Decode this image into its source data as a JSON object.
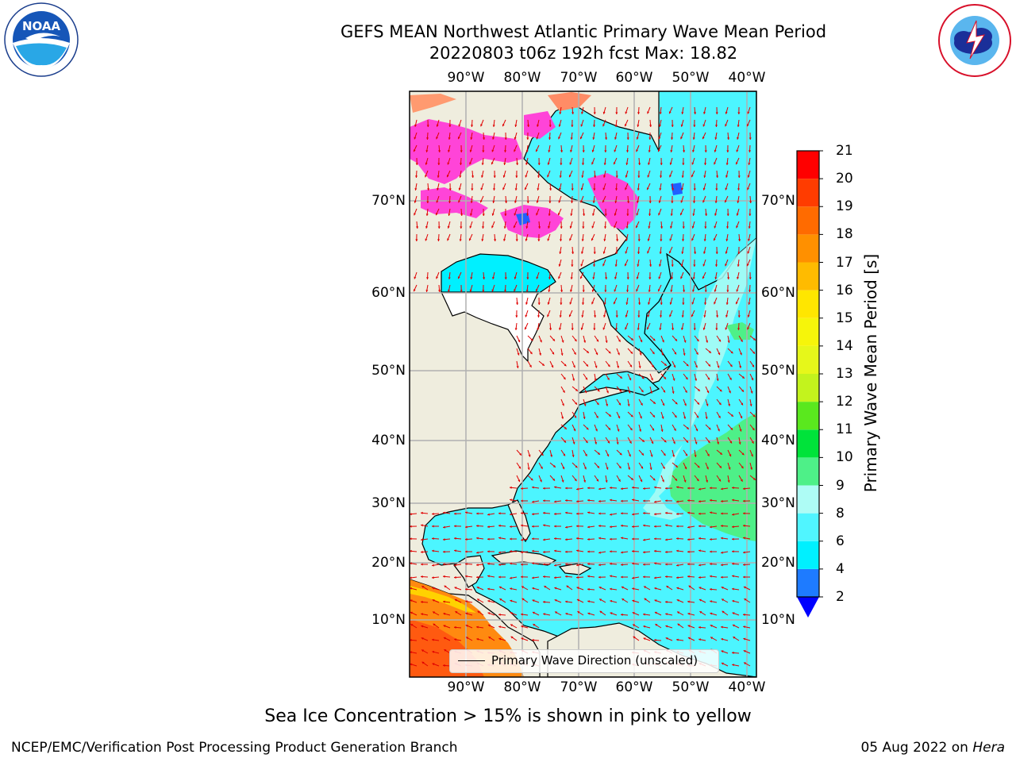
{
  "header": {
    "title_line1": "GEFS MEAN Northwest Atlantic Primary Wave Mean Period",
    "title_line2": "20220803 t06z 192h fcst   Max: 18.82"
  },
  "logos": {
    "left": {
      "name": "noaa-logo",
      "text": "NOAA",
      "ring_text": "NATIONAL OCEANIC AND ATMOSPHERIC ADMINISTRATION · U.S. DEPARTMENT OF COMMERCE"
    },
    "right": {
      "name": "national-weather-service-logo",
      "ring_text": "NATIONAL WEATHER SERVICE"
    }
  },
  "map": {
    "lon_labels": [
      "90°W",
      "80°W",
      "70°W",
      "60°W",
      "50°W",
      "40°W"
    ],
    "lat_labels": [
      "70°N",
      "60°N",
      "50°N",
      "40°N",
      "30°N",
      "20°N",
      "10°N"
    ],
    "colors": {
      "land": "#efedde",
      "sea_ice_masked": "#ffffff",
      "grid": "#b0b0b0",
      "arrow": "#e00000",
      "coast": "#000000"
    }
  },
  "legend": {
    "label": "Primary Wave Direction (unscaled)"
  },
  "colorbar": {
    "label": "Primary Wave Mean Period [s]",
    "ticks": [
      "2",
      "4",
      "6",
      "8",
      "9",
      "10",
      "11",
      "12",
      "13",
      "14",
      "15",
      "16",
      "17",
      "18",
      "19",
      "20",
      "21"
    ],
    "segments": [
      {
        "from": 2,
        "to": 4,
        "color": "#1e7bff"
      },
      {
        "from": 4,
        "to": 6,
        "color": "#00f0ff"
      },
      {
        "from": 6,
        "to": 8,
        "color": "#50f5ff"
      },
      {
        "from": 8,
        "to": 9,
        "color": "#aefcf5"
      },
      {
        "from": 9,
        "to": 10,
        "color": "#4ef088"
      },
      {
        "from": 10,
        "to": 11,
        "color": "#00e33a"
      },
      {
        "from": 11,
        "to": 12,
        "color": "#5ae81e"
      },
      {
        "from": 12,
        "to": 13,
        "color": "#c3f31d"
      },
      {
        "from": 13,
        "to": 14,
        "color": "#e6f71a"
      },
      {
        "from": 14,
        "to": 15,
        "color": "#f6f50a"
      },
      {
        "from": 15,
        "to": 16,
        "color": "#ffe600"
      },
      {
        "from": 16,
        "to": 17,
        "color": "#ffbb00"
      },
      {
        "from": 17,
        "to": 18,
        "color": "#ff9000"
      },
      {
        "from": 18,
        "to": 19,
        "color": "#ff6b00"
      },
      {
        "from": 19,
        "to": 20,
        "color": "#ff3c00"
      },
      {
        "from": 20,
        "to": 21,
        "color": "#ff0000"
      }
    ],
    "under_color": "#0000ff"
  },
  "note": "Sea Ice Concentration > 15% is shown in pink to yellow",
  "footer": {
    "left": "NCEP/EMC/Verification Post Processing Product Generation Branch",
    "right_date": "05 Aug 2022 on ",
    "right_host": "Hera"
  }
}
